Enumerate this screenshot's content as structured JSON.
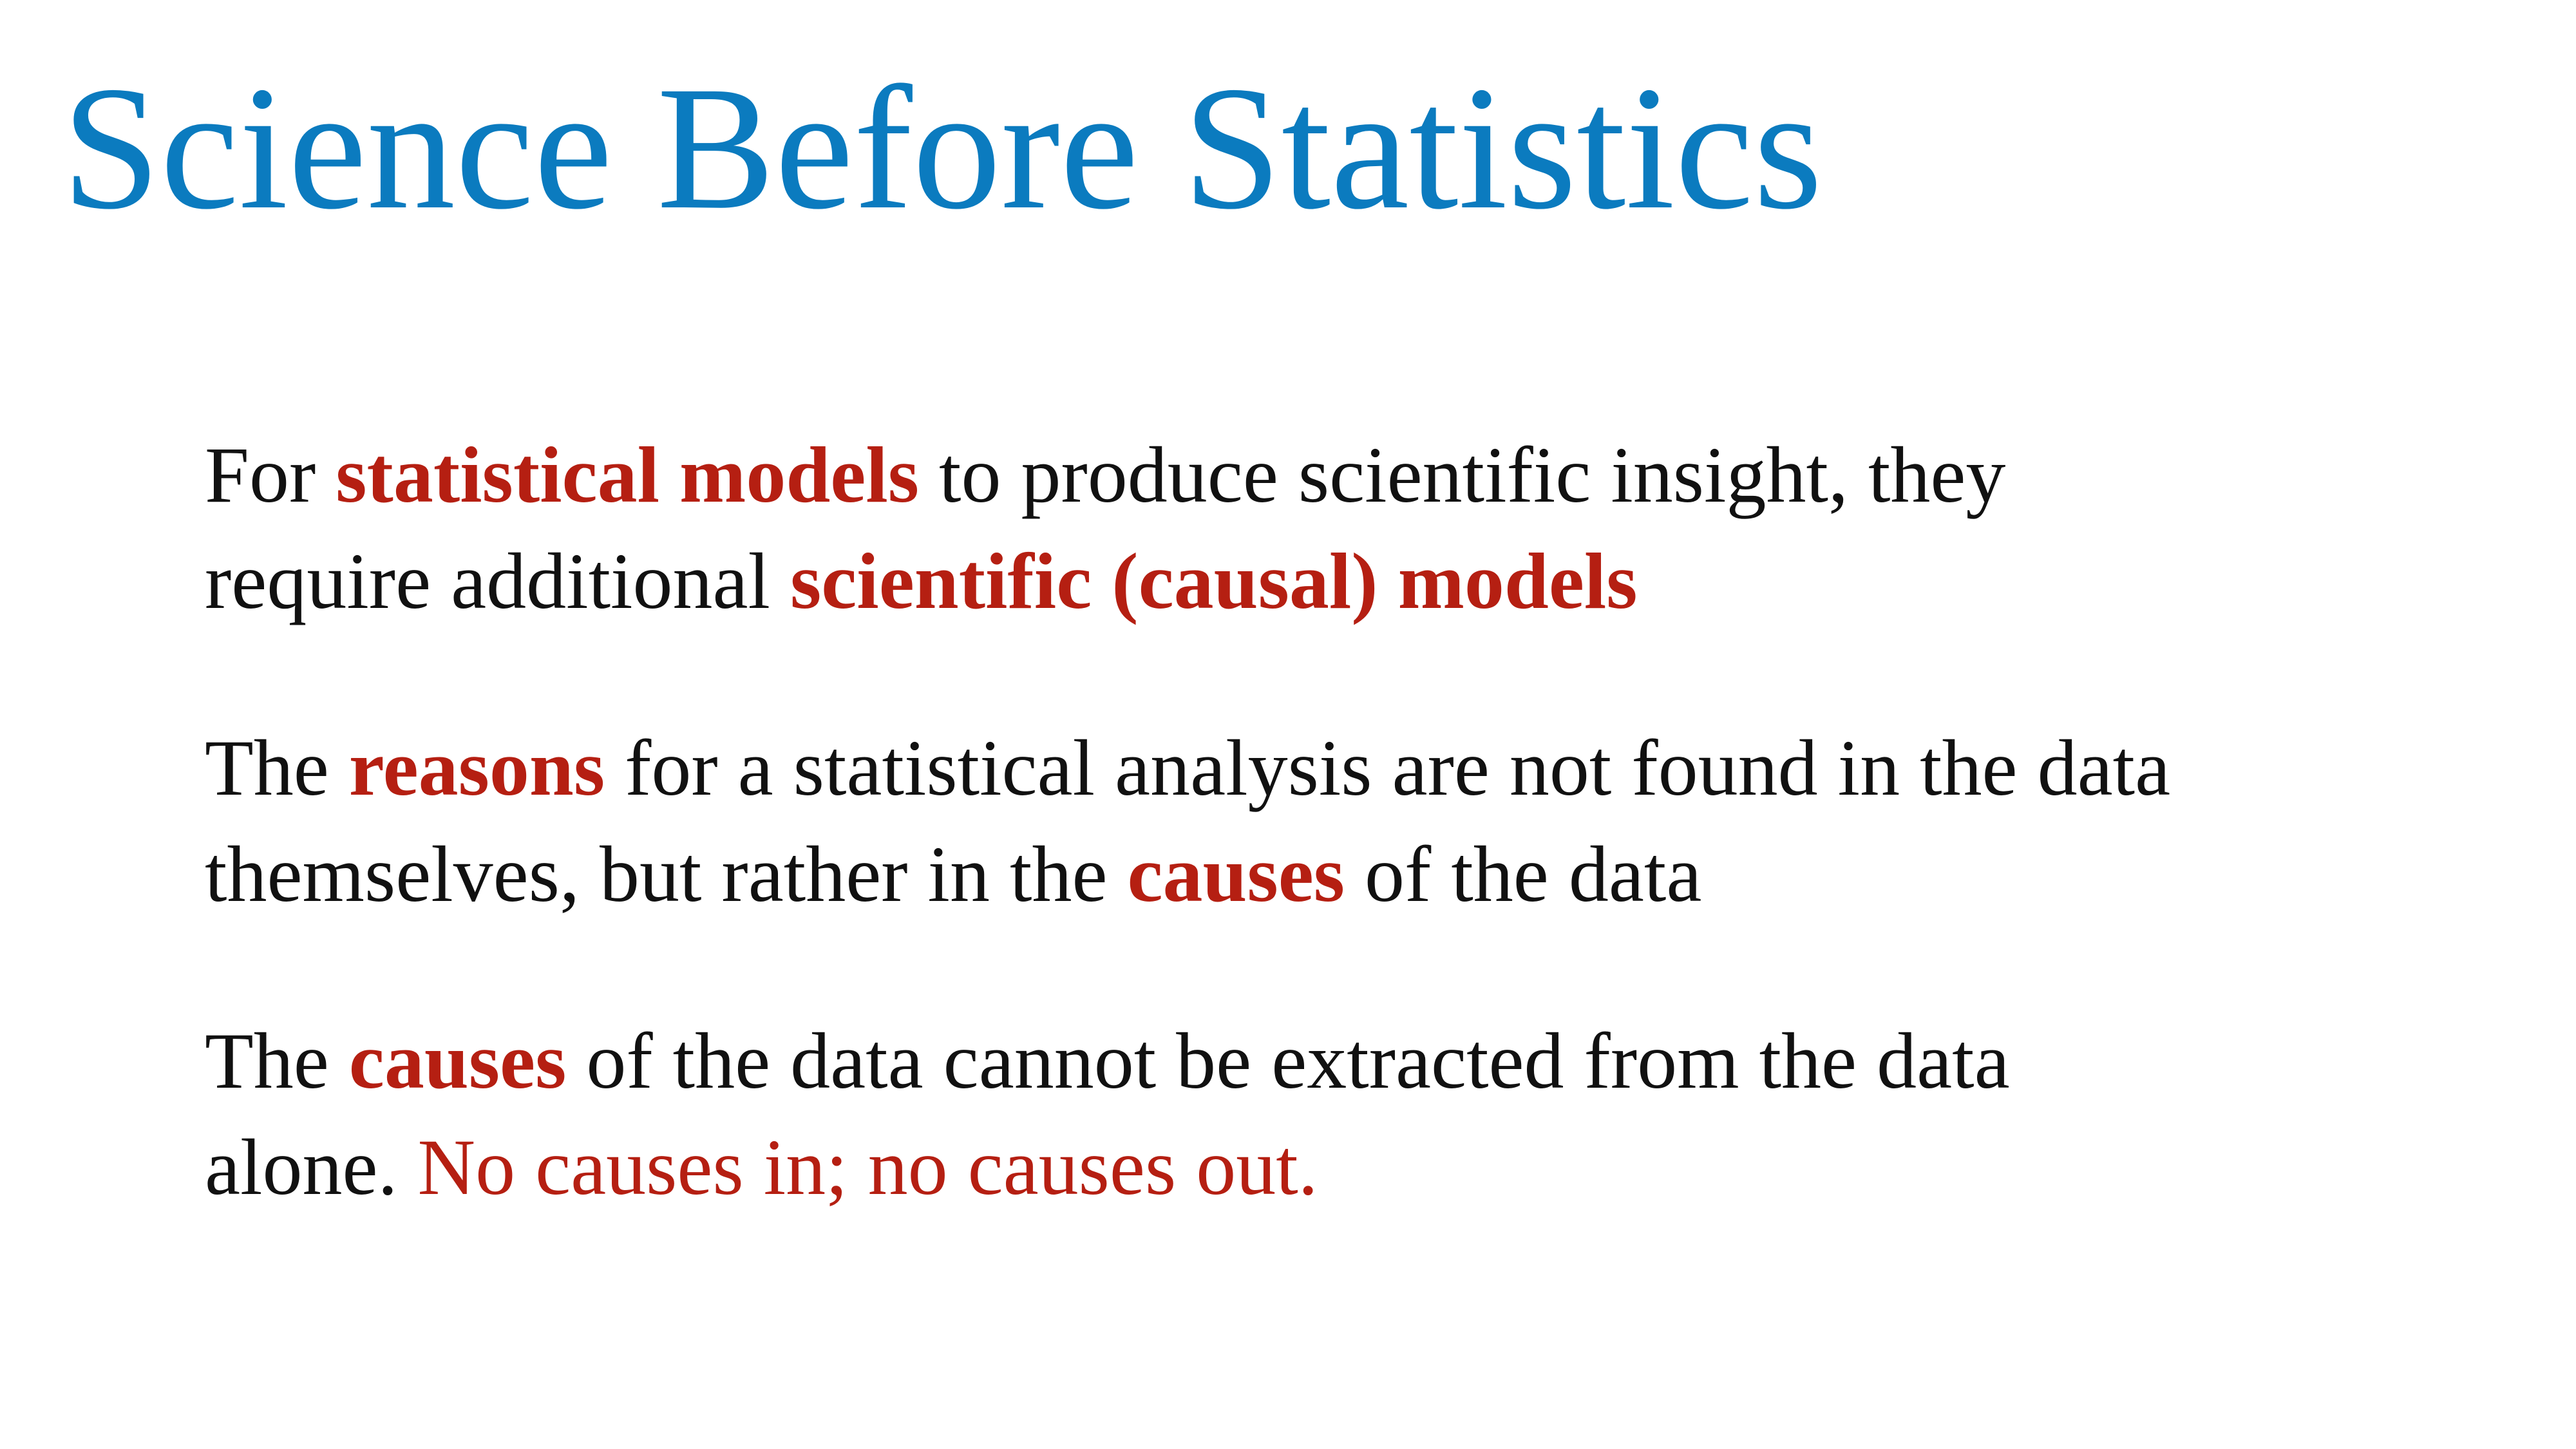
{
  "slide": {
    "title": "Science Before Statistics",
    "colors": {
      "title": "#0b7bbf",
      "body_text": "#111111",
      "emphasis": "#b51f12"
    },
    "paragraphs": [
      {
        "lines": [
          [
            "For ",
            "statistical models",
            " to produce scientific insight, they"
          ],
          [
            "require additional ",
            "scientific (causal) models",
            ""
          ]
        ]
      },
      {
        "lines": [
          [
            "The ",
            "reasons",
            " for a statistical analysis are not found in the data"
          ],
          [
            "themselves, but rather in the ",
            "causes",
            " of the data"
          ]
        ]
      },
      {
        "lines": [
          [
            "The ",
            "causes",
            " of the data cannot be extracted from the data"
          ],
          [
            "alone. ",
            "No causes in; no causes out.",
            ""
          ]
        ]
      }
    ]
  }
}
